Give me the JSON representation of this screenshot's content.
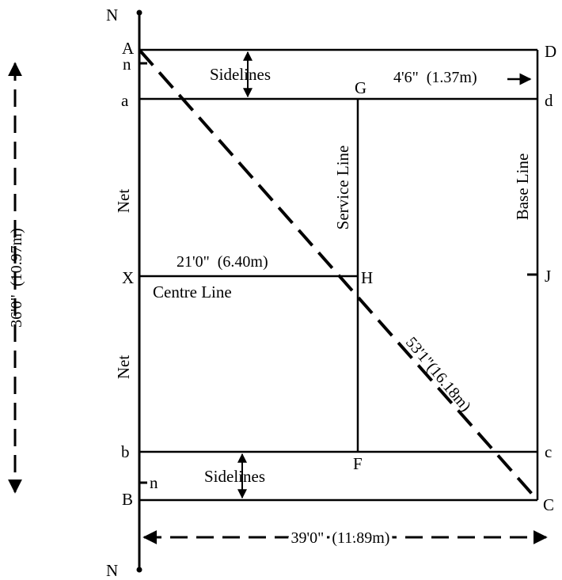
{
  "points": {
    "N_top": "N",
    "N_bottom": "N",
    "A": "A",
    "B": "B",
    "C": "C",
    "D": "D",
    "a": "a",
    "b": "b",
    "c": "c",
    "d": "d",
    "n_top": "n",
    "n_bottom": "n",
    "G": "G",
    "H": "H",
    "F": "F",
    "X": "X",
    "J": "J"
  },
  "labels": {
    "sidelines_top": "Sidelines",
    "sidelines_bottom": "Sidelines",
    "net_top": "Net",
    "net_bottom": "Net",
    "service_line": "Service Line",
    "base_line": "Base Line",
    "centre_line": "Centre Line"
  },
  "measurements": {
    "sideline_width": "4'6\"  (1.37m)",
    "centre_length": "21'0\"  (6.40m)",
    "diagonal": "53'1\"(16.18m)",
    "court_width": "36'0\"  (10.97m)",
    "court_length": "39'0\"  (11.89m)"
  }
}
